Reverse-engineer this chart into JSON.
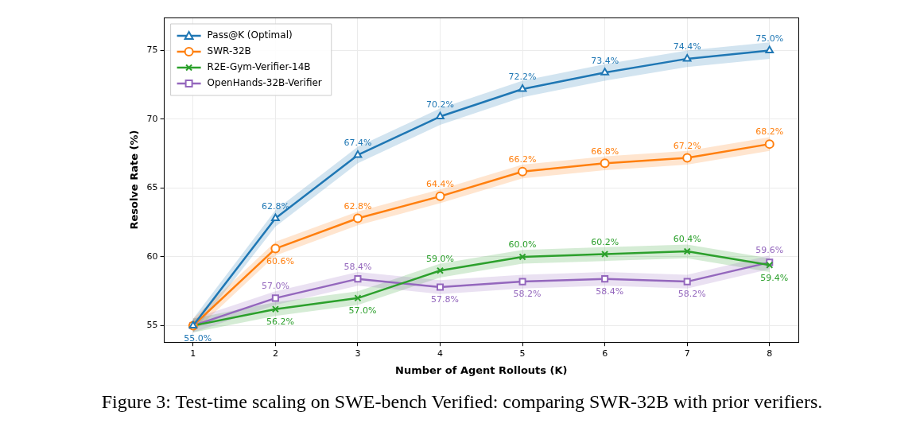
{
  "chart_data": {
    "type": "line",
    "xlabel": "Number of Agent Rollouts (K)",
    "ylabel": "Resolve Rate (%)",
    "x": [
      1,
      2,
      3,
      4,
      5,
      6,
      7,
      8
    ],
    "xlim": [
      0.65,
      8.35
    ],
    "xticks": [
      1,
      2,
      3,
      4,
      5,
      6,
      7,
      8
    ],
    "ylim": [
      53.8,
      77.4
    ],
    "yticks": [
      55,
      60,
      65,
      70,
      75
    ],
    "grid": true,
    "legend": "top left",
    "line_style": "solid",
    "series": [
      {
        "name": "Pass@K (Optimal)",
        "color": "#1f77b4",
        "marker": "triangle",
        "values": [
          55.0,
          62.8,
          67.4,
          70.2,
          72.2,
          73.4,
          74.4,
          75.0
        ],
        "lower": [
          54.5,
          62.2,
          66.8,
          69.6,
          71.6,
          72.8,
          73.8,
          74.4
        ],
        "upper": [
          55.5,
          63.4,
          68.0,
          70.8,
          72.8,
          74.0,
          75.0,
          75.6
        ],
        "value_labels": [
          "55.0%",
          "62.8%",
          "67.4%",
          "70.2%",
          "72.2%",
          "73.4%",
          "74.4%",
          "75.0%"
        ]
      },
      {
        "name": "SWR-32B",
        "color": "#ff7f0e",
        "marker": "circle",
        "values": [
          55.0,
          60.6,
          62.8,
          64.4,
          66.2,
          66.8,
          67.2,
          68.2
        ],
        "lower": [
          54.5,
          60.1,
          62.3,
          63.9,
          65.7,
          66.3,
          66.7,
          67.7
        ],
        "upper": [
          55.5,
          61.1,
          63.3,
          64.9,
          66.7,
          67.3,
          67.7,
          68.7
        ],
        "value_labels": [
          null,
          "60.6%",
          "62.8%",
          "64.4%",
          "66.2%",
          "66.8%",
          "67.2%",
          "68.2%"
        ]
      },
      {
        "name": "R2E-Gym-Verifier-14B",
        "color": "#2ca02c",
        "marker": "cross",
        "values": [
          55.0,
          56.2,
          57.0,
          59.0,
          60.0,
          60.2,
          60.4,
          59.4
        ],
        "lower": [
          54.5,
          55.7,
          56.5,
          58.5,
          59.5,
          59.7,
          59.9,
          58.9
        ],
        "upper": [
          55.5,
          56.7,
          57.5,
          59.5,
          60.5,
          60.7,
          60.9,
          59.9
        ],
        "value_labels": [
          null,
          "56.2%",
          "57.0%",
          "59.0%",
          "60.0%",
          "60.2%",
          "60.4%",
          "59.4%"
        ]
      },
      {
        "name": "OpenHands-32B-Verifier",
        "color": "#9467bd",
        "marker": "square",
        "values": [
          55.0,
          57.0,
          58.4,
          57.8,
          58.2,
          58.4,
          58.2,
          59.6
        ],
        "lower": [
          54.5,
          56.5,
          57.9,
          57.3,
          57.7,
          57.9,
          57.7,
          59.1
        ],
        "upper": [
          55.5,
          57.5,
          58.9,
          58.3,
          58.7,
          58.9,
          58.7,
          60.1
        ],
        "value_labels": [
          null,
          "57.0%",
          "58.4%",
          "57.8%",
          "58.2%",
          "58.4%",
          "58.2%",
          "59.6%"
        ]
      }
    ],
    "annotations": [
      "Figure 3: Test-time scaling on SWE-bench Verified: comparing SWR-32B with prior verifiers."
    ]
  }
}
